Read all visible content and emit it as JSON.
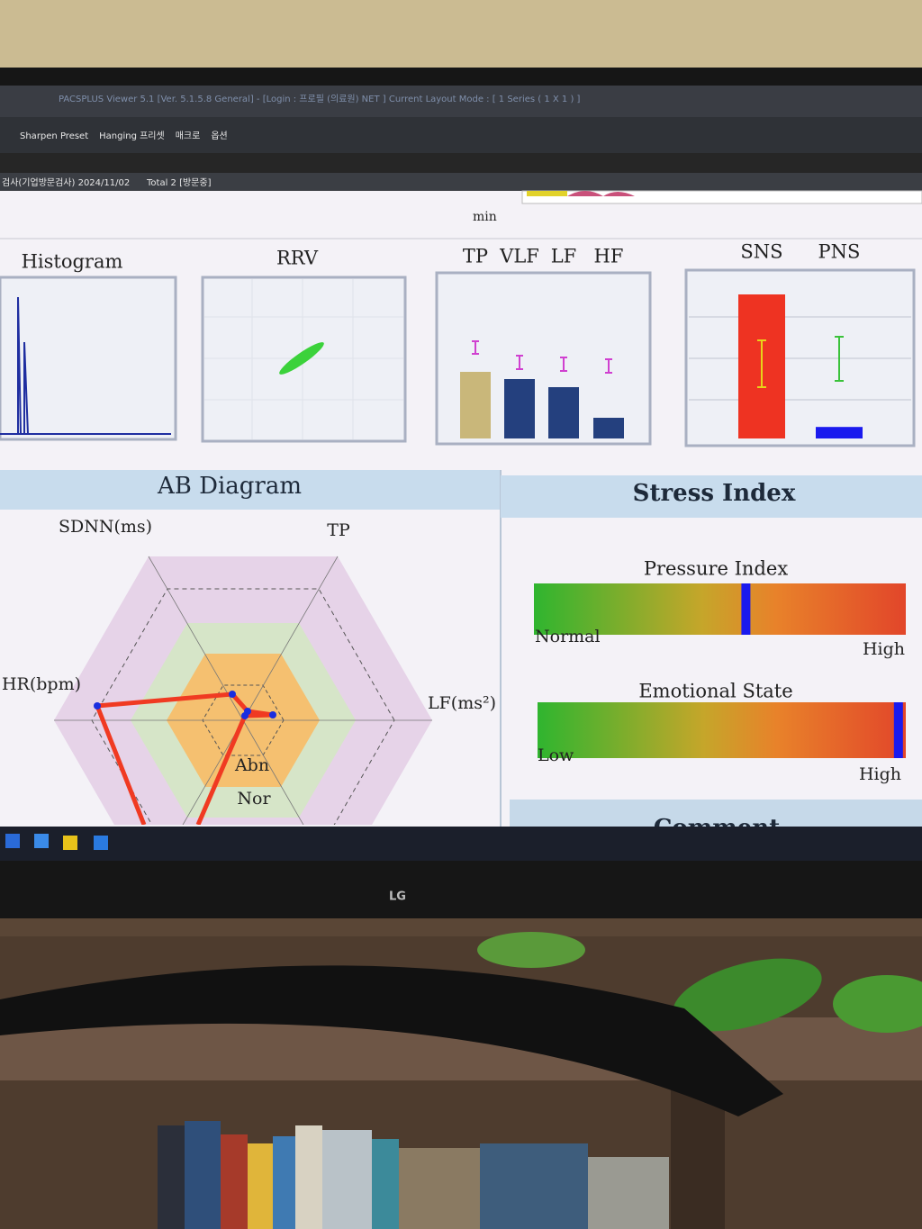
{
  "window": {
    "title": "PACSPLUS Viewer 5.1 [Ver. 5.1.5.8 General] - [Login : 프로필 (의료원) NET ] Current Layout Mode : [ 1 Series ( 1 X 1 ) ]",
    "menu": [
      "Sharpen Preset",
      "Hanging 프리셋",
      "매크로",
      "옵션"
    ],
    "study": "검사(기업방문검사) 2024/11/02",
    "total": "Total 2 [방문중]"
  },
  "timeline": {
    "unit": "min"
  },
  "histogram": {
    "title": "Histogram"
  },
  "rrv": {
    "title": "RRV"
  },
  "spectrum": {
    "categories": [
      "TP",
      "VLF",
      "LF",
      "HF"
    ],
    "values": [
      74,
      66,
      57,
      23
    ],
    "colors": [
      "#c9b77a",
      "#24407e",
      "#24407e",
      "#24407e"
    ],
    "ylim": [
      0,
      100
    ]
  },
  "autonomic": {
    "categories": [
      "SNS",
      "PNS"
    ],
    "values": [
      100,
      8
    ],
    "colors": [
      "#ee3322",
      "#1a1aee"
    ],
    "ylim": [
      0,
      100
    ]
  },
  "ab_diagram": {
    "title": "AB Diagram",
    "axes": [
      "SDNN(ms)",
      "TP",
      "LF(ms²)",
      "HR(bpm)"
    ],
    "zones": [
      "Abn",
      "Nor"
    ]
  },
  "stress_index": {
    "title": "Stress Index",
    "pressure_index": {
      "title": "Pressure Index",
      "low": "Normal",
      "high": "High",
      "value": 57,
      "xlim": [
        0,
        100
      ]
    },
    "emotional_state": {
      "title": "Emotional State",
      "low": "Low",
      "high": "High",
      "value": 98,
      "xlim": [
        0,
        100
      ]
    }
  },
  "comment": {
    "title": "Comment"
  },
  "monitor": {
    "brand": "LG"
  }
}
